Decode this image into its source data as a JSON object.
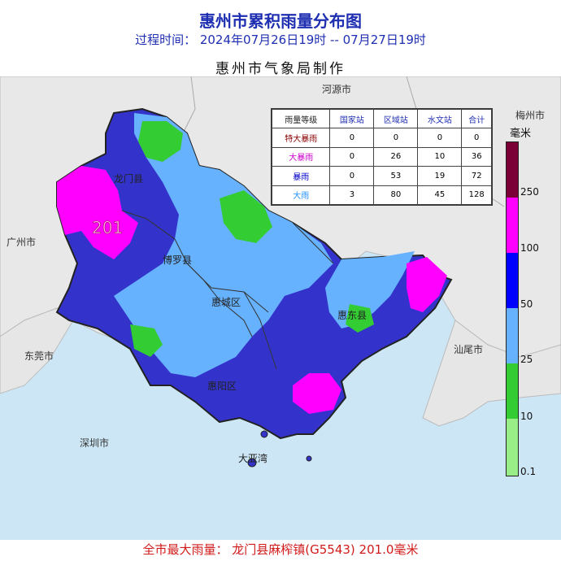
{
  "header": {
    "title": "惠州市累积雨量分布图",
    "period": "过程时间：  2024年07月26日19时  -- 07月27日19时",
    "author": "惠州市气象局制作"
  },
  "map": {
    "colors": {
      "sea": "#cce6f5",
      "land_outside": "#e8e8e8",
      "boundary": "#333333",
      "light_blue": "#66b2ff",
      "blue": "#0000ff",
      "deep_blue": "#3333cc",
      "green": "#33cc33",
      "magenta": "#ff00ff"
    },
    "place_labels": {
      "heyuan": "河源市",
      "meizhou": "梅州市",
      "guangzhou": "广州市",
      "dongguan": "东莞市",
      "shenzhen": "深圳市",
      "shanwei": "汕尾市",
      "longmen": "龙门县",
      "boluo": "博罗县",
      "huicheng": "惠城区",
      "huidong": "惠东县",
      "huiyang": "惠阳区",
      "daya_bay": "大亚湾"
    },
    "max_marker": "201"
  },
  "table": {
    "headers": [
      "雨量等级",
      "国家站",
      "区域站",
      "水文站",
      "合计"
    ],
    "rows": [
      {
        "level": "特大暴雨",
        "color": "#8b0000",
        "values": [
          "0",
          "0",
          "0",
          "0"
        ]
      },
      {
        "level": "大暴雨",
        "color": "#cc00cc",
        "values": [
          "0",
          "26",
          "10",
          "36"
        ]
      },
      {
        "level": "暴雨",
        "color": "#0000cc",
        "values": [
          "0",
          "53",
          "19",
          "72"
        ]
      },
      {
        "level": "大雨",
        "color": "#1e90ff",
        "values": [
          "3",
          "80",
          "45",
          "128"
        ]
      }
    ]
  },
  "legend": {
    "unit": "毫米",
    "ticks": [
      "250",
      "100",
      "50",
      "25",
      "10",
      "0.1"
    ],
    "segments": [
      {
        "color": "#7a0036"
      },
      {
        "color": "#ff00ff"
      },
      {
        "color": "#0000ff"
      },
      {
        "color": "#66b2ff"
      },
      {
        "color": "#33cc33"
      },
      {
        "color": "#99ee88"
      }
    ]
  },
  "footer": {
    "text": "全市最大雨量：  龙门县麻榨镇(G5543) 201.0毫米"
  }
}
